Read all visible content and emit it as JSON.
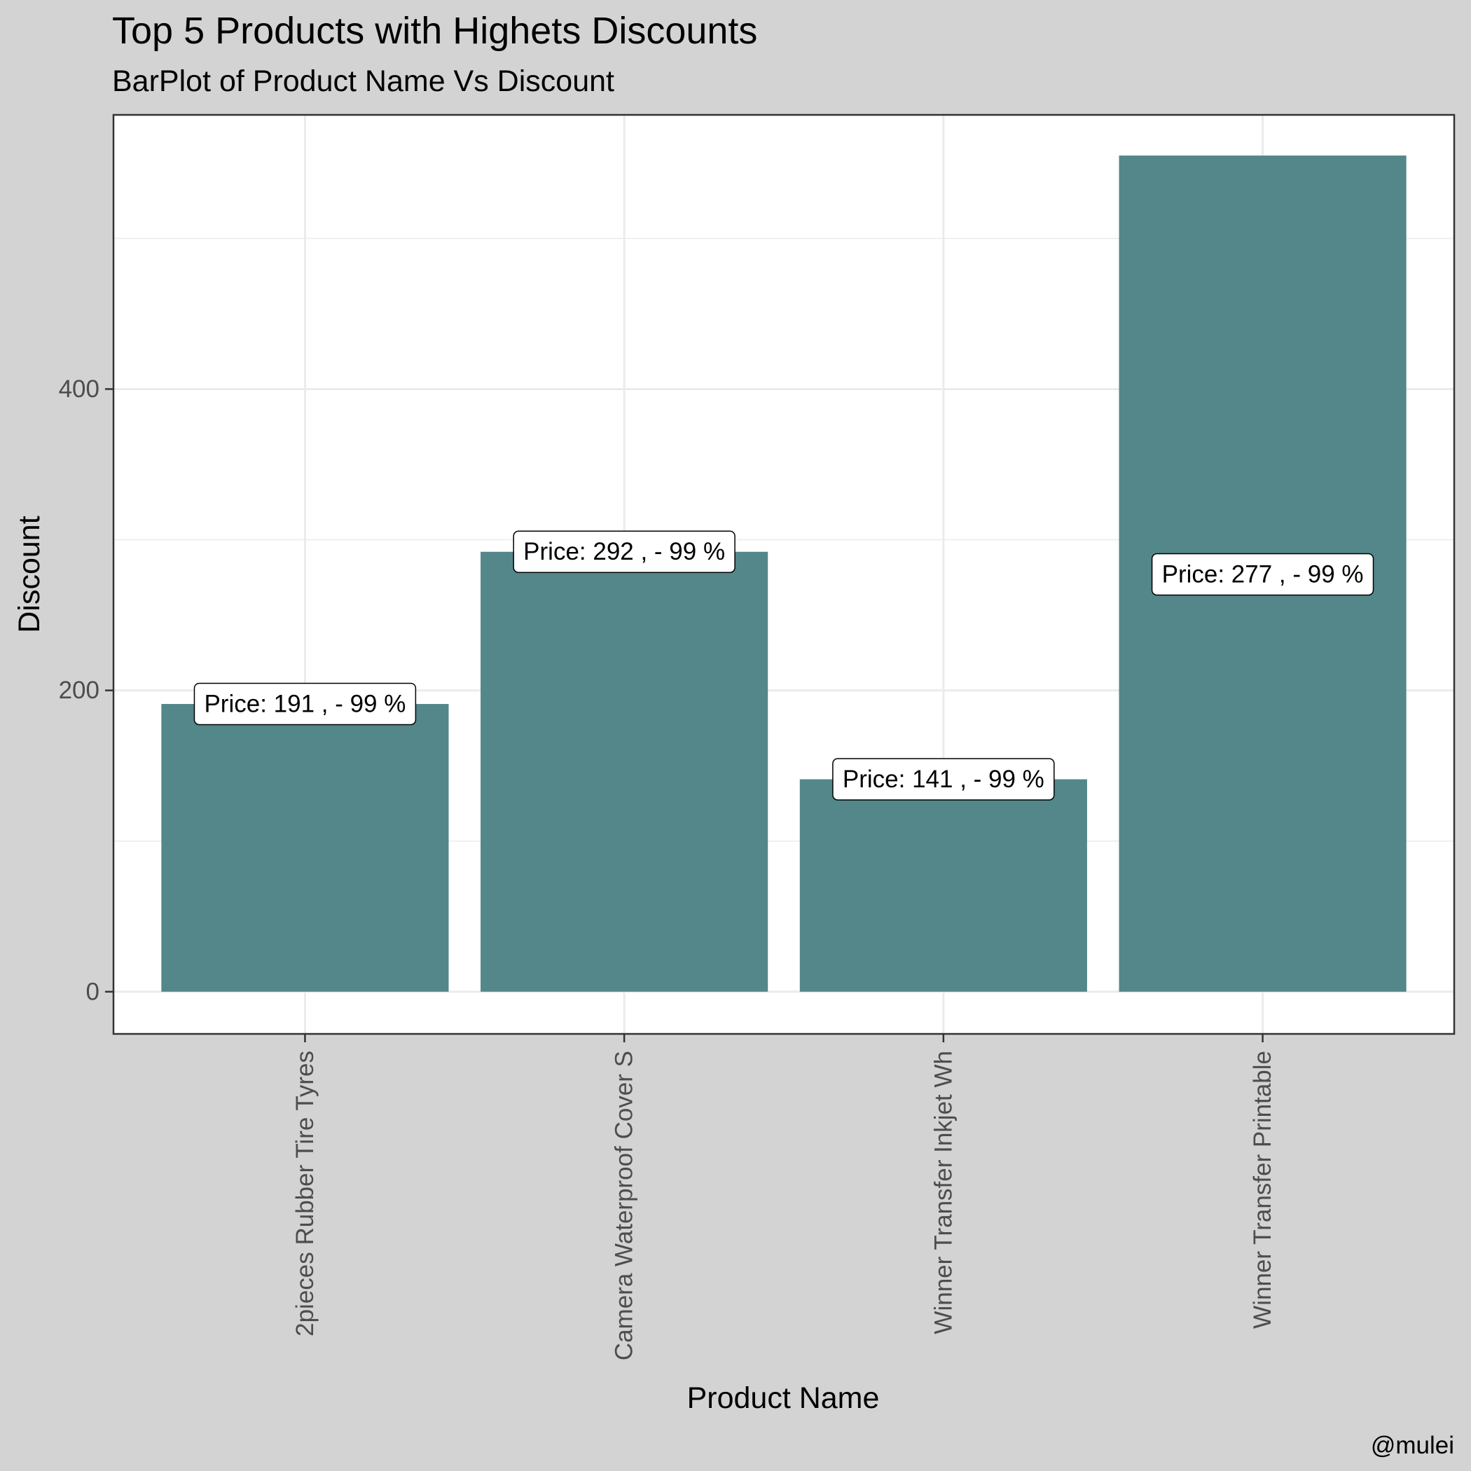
{
  "chart_data": {
    "type": "bar",
    "title": "Top 5 Products with Highets Discounts",
    "subtitle": "BarPlot of Product Name Vs Discount",
    "xlabel": "Product Name",
    "ylabel": "Discount",
    "caption": "@mulei",
    "categories": [
      "2pieces Rubber Tire Tyres",
      "Camera Waterproof Cover S",
      "Winner Transfer Inkjet Wh",
      "Winner Transfer Printable"
    ],
    "values": [
      191,
      292,
      141,
      555
    ],
    "data_labels": [
      "Price: 191 , - 99 %",
      "Price: 292 , - 99 %",
      "Price: 141 , - 99 %",
      "Price: 277 , - 99 %"
    ],
    "data_label_values": [
      191,
      292,
      141,
      277
    ],
    "y_ticks": [
      0,
      200,
      400
    ],
    "ylim": [
      -28,
      582
    ],
    "grid": true,
    "colors": {
      "bar": "#53878a",
      "panel": "#ffffff",
      "background": "#d3d3d3",
      "grid": "#ebebeb",
      "border": "#333333"
    }
  }
}
